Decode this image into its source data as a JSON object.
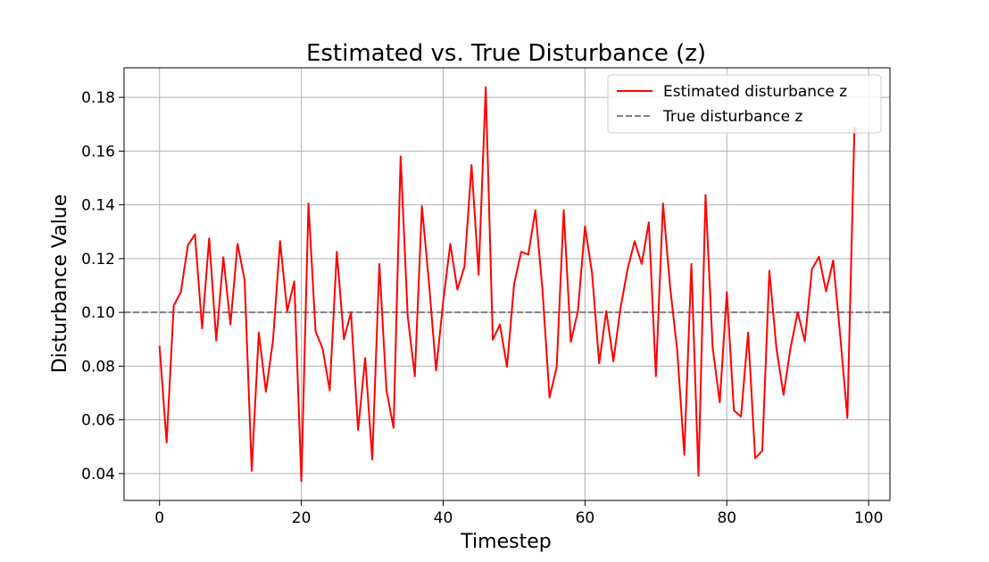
{
  "chart_data": {
    "type": "line",
    "title": "Estimated vs. True Disturbance (z)",
    "xlabel": "Timestep",
    "ylabel": "Disturbance Value",
    "xlim": [
      -5,
      103
    ],
    "ylim": [
      0.03,
      0.191
    ],
    "xticks": [
      0,
      20,
      40,
      60,
      80,
      100
    ],
    "xtick_labels": [
      "0",
      "20",
      "40",
      "60",
      "80",
      "100"
    ],
    "yticks": [
      0.04,
      0.06,
      0.08,
      0.1,
      0.12,
      0.14,
      0.16,
      0.18
    ],
    "ytick_labels": [
      "0.04",
      "0.06",
      "0.08",
      "0.10",
      "0.12",
      "0.14",
      "0.16",
      "0.18"
    ],
    "grid": true,
    "legend_position": "top-right",
    "series": [
      {
        "name": "Estimated disturbance z",
        "color": "#ff0000",
        "style": "solid",
        "x": [
          0,
          1,
          2,
          3,
          4,
          5,
          6,
          7,
          8,
          9,
          10,
          11,
          12,
          13,
          14,
          15,
          16,
          17,
          18,
          19,
          20,
          21,
          22,
          23,
          24,
          25,
          26,
          27,
          28,
          29,
          30,
          31,
          32,
          33,
          34,
          35,
          36,
          37,
          38,
          39,
          40,
          41,
          42,
          43,
          44,
          45,
          46,
          47,
          48,
          49,
          50,
          51,
          52,
          53,
          54,
          55,
          56,
          57,
          58,
          59,
          60,
          61,
          62,
          63,
          64,
          65,
          66,
          67,
          68,
          69,
          70,
          71,
          72,
          73,
          74,
          75,
          76,
          77,
          78,
          79,
          80,
          81,
          82,
          83,
          84,
          85,
          86,
          87,
          88,
          89,
          90,
          91,
          92,
          93,
          94,
          95,
          96,
          97,
          98
        ],
        "y": [
          0.0875,
          0.0515,
          0.1025,
          0.1075,
          0.125,
          0.129,
          0.094,
          0.1275,
          0.0895,
          0.1205,
          0.0955,
          0.1255,
          0.112,
          0.041,
          0.0925,
          0.0705,
          0.0895,
          0.1265,
          0.1005,
          0.1115,
          0.0372,
          0.1405,
          0.093,
          0.0865,
          0.071,
          0.1225,
          0.09,
          0.1,
          0.0562,
          0.083,
          0.0452,
          0.118,
          0.071,
          0.057,
          0.158,
          0.0985,
          0.0762,
          0.1395,
          0.111,
          0.0783,
          0.104,
          0.1255,
          0.1085,
          0.117,
          0.1548,
          0.114,
          0.1838,
          0.0898,
          0.0955,
          0.0797,
          0.1105,
          0.1225,
          0.1215,
          0.138,
          0.1085,
          0.0683,
          0.0795,
          0.138,
          0.089,
          0.1005,
          0.132,
          0.1145,
          0.081,
          0.1005,
          0.0818,
          0.1015,
          0.116,
          0.1265,
          0.118,
          0.1335,
          0.0762,
          0.1405,
          0.1095,
          0.086,
          0.047,
          0.118,
          0.0392,
          0.1437,
          0.087,
          0.0665,
          0.1075,
          0.0635,
          0.0612,
          0.0925,
          0.0457,
          0.0485,
          0.1155,
          0.0865,
          0.0693,
          0.087,
          0.1,
          0.0893,
          0.116,
          0.1207,
          0.1078,
          0.1193,
          0.091,
          0.0607,
          0.169
        ]
      },
      {
        "name": "True disturbance z",
        "color": "#808080",
        "style": "dashed",
        "x": [
          -5,
          103
        ],
        "y": [
          0.1,
          0.1
        ]
      }
    ]
  }
}
